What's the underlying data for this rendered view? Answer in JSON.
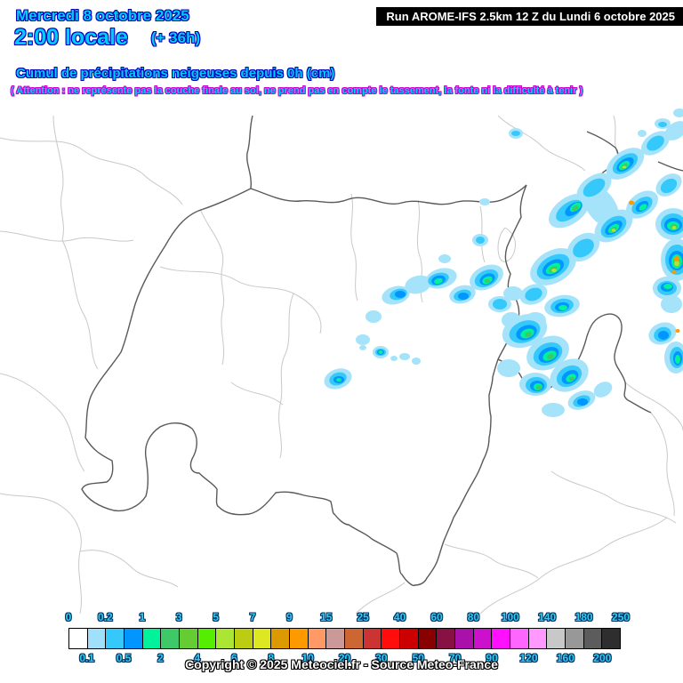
{
  "header": {
    "date_line": "Mercredi 8 octobre 2025",
    "time_line": "2:00 locale",
    "offset_line": "(+ 36h)",
    "run_info": "Run AROME-IFS 2.5km 12 Z du Lundi 6 octobre 2025",
    "subtitle": "Cumul de précipitations neigeuses depuis 0h (cm)",
    "warning": "( Attention : ne représente pas la couche finale au sol, ne prend pas en compte le tassement, la fonte ni la difficulté à tenir )"
  },
  "colors": {
    "header_text": "#00CCFF",
    "header_outline": "#0000BB",
    "warning_outline": "#CC00CC",
    "run_box_bg": "#000000",
    "run_box_text": "#FFFFFF",
    "border_national": "#5A5A5A",
    "border_regional": "#C9C9C9",
    "map_background": "#FFFFFF"
  },
  "legend": {
    "unit": "cm",
    "cell_colors": [
      "#FFFFFF",
      "#A0E0FA",
      "#35C8FB",
      "#0095FF",
      "#00F29A",
      "#3FC868",
      "#66CC33",
      "#55EE00",
      "#AAE633",
      "#BBCC11",
      "#DDE822",
      "#DD9900",
      "#FF9900",
      "#FF9966",
      "#CC9999",
      "#CC6633",
      "#CC3333",
      "#FF0D0D",
      "#CC0000",
      "#880000",
      "#881144",
      "#AA11AA",
      "#CC11CC",
      "#FF11FF",
      "#FF66FF",
      "#FF99FF",
      "#C8C8C8",
      "#989898",
      "#5C5C5C",
      "#2E2E2E"
    ],
    "top_labels": [
      "0",
      "0.2",
      "1",
      "3",
      "5",
      "7",
      "9",
      "15",
      "25",
      "40",
      "60",
      "80",
      "100",
      "140",
      "180",
      "250"
    ],
    "top_boundaries": [
      0,
      2,
      4,
      6,
      8,
      10,
      12,
      14,
      16,
      18,
      20,
      22,
      24,
      26,
      28,
      30
    ],
    "bottom_labels": [
      "0.1",
      "0.5",
      "2",
      "4",
      "6",
      "8",
      "10",
      "20",
      "30",
      "50",
      "70",
      "90",
      "120",
      "160",
      "200"
    ],
    "bottom_boundaries": [
      1,
      3,
      5,
      7,
      9,
      11,
      13,
      15,
      17,
      19,
      21,
      23,
      25,
      27,
      29
    ],
    "copyright": "Copyright © 2025 Meteociel.fr - Source Meteo-France"
  }
}
